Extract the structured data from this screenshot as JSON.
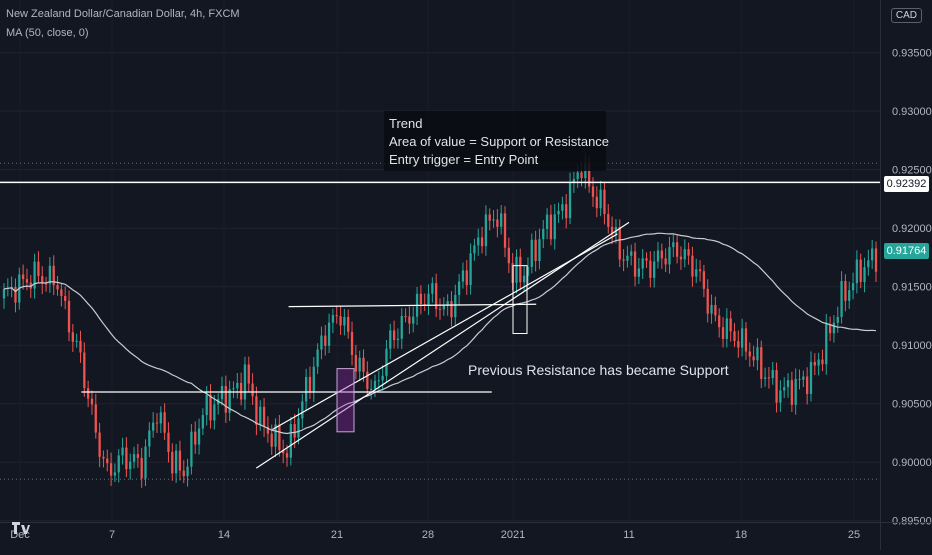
{
  "header": {
    "symbol_line": "New Zealand Dollar/Canadian Dollar, 4h, FXCM",
    "indicator_line": "MA (50, close, 0)",
    "currency": "CAD"
  },
  "annotations": {
    "box_lines": [
      "Trend",
      "Area of value = Support or Resistance",
      "Entry trigger = Entry Point"
    ],
    "support_note": "Previous Resistance has became Support"
  },
  "price_tags": {
    "level": "0.92392",
    "last": "0.91764"
  },
  "colors": {
    "background": "#131722",
    "up": "#26a69a",
    "down": "#ef5350",
    "ma": "#c9ccd3",
    "lines": "#ffffff"
  },
  "chart_data": {
    "type": "candlestick",
    "timeframe": "4h",
    "ylim": [
      0.8925,
      0.9395
    ],
    "y_ticks": [
      "0.89500",
      "0.90000",
      "0.90500",
      "0.91000",
      "0.91500",
      "0.92000",
      "0.92500",
      "0.93000",
      "0.93500"
    ],
    "x_ticks": [
      "Dec",
      "7",
      "14",
      "21",
      "28",
      "2021",
      "11",
      "18",
      "25"
    ],
    "anchors": [
      [
        0,
        0.9143
      ],
      [
        8,
        0.916
      ],
      [
        14,
        0.9154
      ],
      [
        16,
        0.9128
      ],
      [
        20,
        0.9088
      ],
      [
        24,
        0.9025
      ],
      [
        27,
        0.899
      ],
      [
        31,
        0.9005
      ],
      [
        36,
        0.8998
      ],
      [
        40,
        0.9045
      ],
      [
        44,
        0.9
      ],
      [
        47,
        0.8992
      ],
      [
        52,
        0.9042
      ],
      [
        57,
        0.9055
      ],
      [
        61,
        0.9062
      ],
      [
        63,
        0.9075
      ],
      [
        67,
        0.9035
      ],
      [
        71,
        0.9018
      ],
      [
        74,
        0.9008
      ],
      [
        79,
        0.9062
      ],
      [
        84,
        0.9112
      ],
      [
        88,
        0.9128
      ],
      [
        92,
        0.9085
      ],
      [
        97,
        0.906
      ],
      [
        101,
        0.9105
      ],
      [
        106,
        0.9125
      ],
      [
        111,
        0.9145
      ],
      [
        116,
        0.9128
      ],
      [
        121,
        0.9165
      ],
      [
        125,
        0.9198
      ],
      [
        129,
        0.9212
      ],
      [
        133,
        0.916
      ],
      [
        136,
        0.9162
      ],
      [
        141,
        0.9198
      ],
      [
        146,
        0.9215
      ],
      [
        151,
        0.9255
      ],
      [
        153,
        0.9235
      ],
      [
        157,
        0.9215
      ],
      [
        161,
        0.918
      ],
      [
        165,
        0.9168
      ],
      [
        169,
        0.9168
      ],
      [
        173,
        0.9178
      ],
      [
        176,
        0.9182
      ],
      [
        181,
        0.9165
      ],
      [
        186,
        0.912
      ],
      [
        191,
        0.9108
      ],
      [
        195,
        0.9095
      ],
      [
        199,
        0.9075
      ],
      [
        203,
        0.906
      ],
      [
        207,
        0.9065
      ],
      [
        211,
        0.9075
      ],
      [
        214,
        0.9095
      ],
      [
        219,
        0.914
      ],
      [
        224,
        0.9165
      ],
      [
        228,
        0.9176
      ]
    ],
    "ma_period": 50,
    "horizontal_levels": [
      0.92392,
      0.92555,
      0.89855
    ],
    "trend_lines": [
      {
        "from": [
          "Dec 16",
          0.8995
        ],
        "to": [
          "Jan 11",
          0.9205
        ]
      },
      {
        "from": [
          "Dec 17",
          0.9028
        ],
        "to": [
          "Jan 10",
          0.9195
        ]
      },
      {
        "from": [
          "Dec 18",
          0.9133
        ],
        "to": [
          "Jan 3",
          0.9135
        ]
      },
      {
        "from": [
          "Dec 5",
          0.906
        ],
        "to": [
          "Dec 31",
          0.906
        ]
      }
    ],
    "highlight_boxes": [
      {
        "x": [
          "Dec 21",
          "Dec 22"
        ],
        "y": [
          0.908,
          0.9026
        ],
        "color": "purple"
      },
      {
        "x": [
          "Jan 1",
          "Jan 1"
        ],
        "y": [
          0.9168,
          0.911
        ],
        "color": "white"
      }
    ]
  }
}
